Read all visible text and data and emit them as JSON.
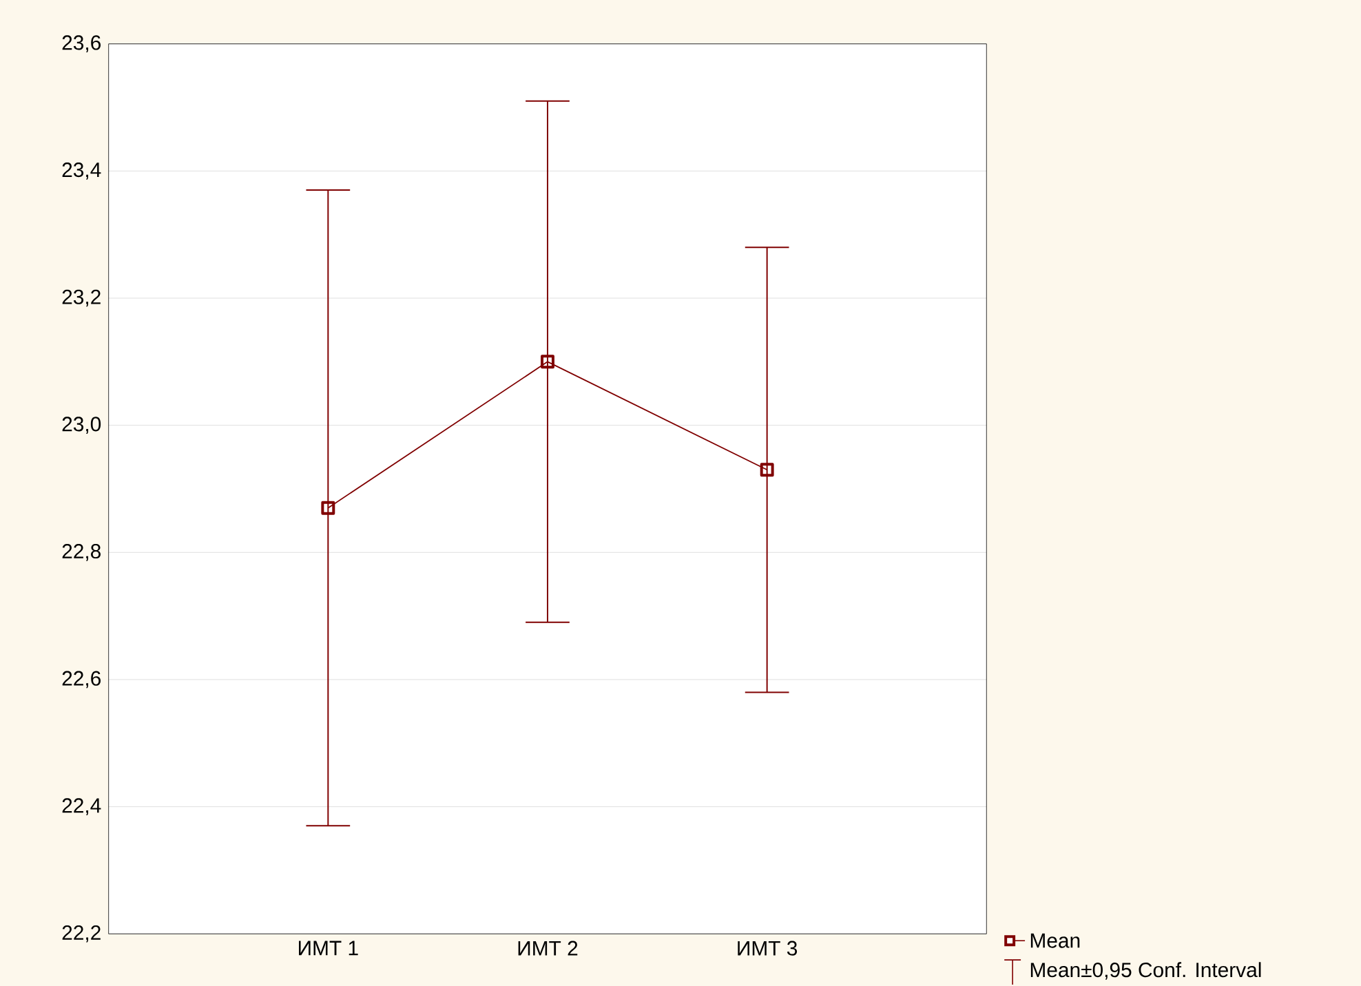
{
  "chart_data": {
    "type": "line",
    "categories": [
      "ИМТ 1",
      "ИМТ 2",
      "ИМТ 3"
    ],
    "series": [
      {
        "name": "Mean",
        "color": "#800000",
        "values": [
          22.87,
          23.1,
          22.93
        ],
        "errors": [
          0.5,
          0.41,
          0.35
        ]
      }
    ],
    "ylim": [
      22.2,
      23.6
    ],
    "yticks": [
      {
        "value": 22.2,
        "label": "22,2"
      },
      {
        "value": 22.4,
        "label": "22,4"
      },
      {
        "value": 22.6,
        "label": "22,6"
      },
      {
        "value": 22.8,
        "label": "22,8"
      },
      {
        "value": 23.0,
        "label": "23,0"
      },
      {
        "value": 23.2,
        "label": "23,2"
      },
      {
        "value": 23.4,
        "label": "23,4"
      },
      {
        "value": 23.6,
        "label": "23,6"
      }
    ],
    "grid": "y",
    "marker": "square",
    "line_style": "solid",
    "legend": "bottom right",
    "annotations": [
      "Mean±0,95 Conf. Interval"
    ]
  }
}
